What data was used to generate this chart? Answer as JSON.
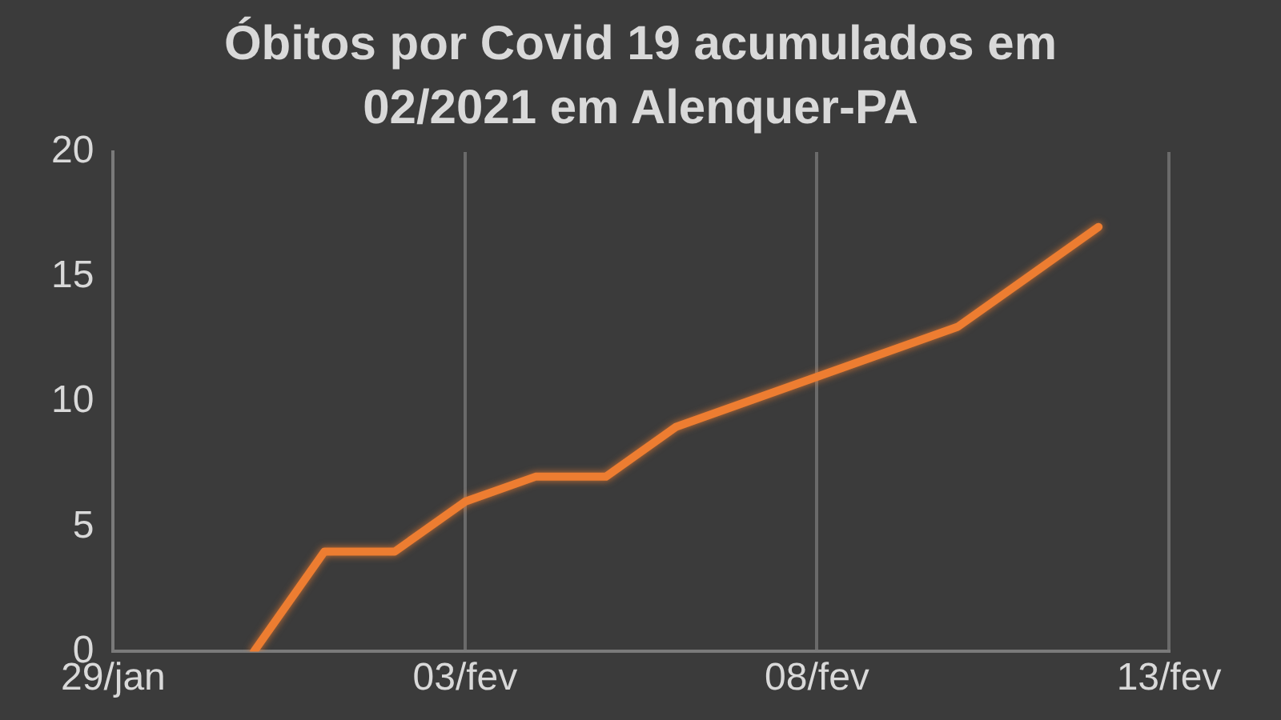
{
  "chart_data": {
    "type": "line",
    "title": "Óbitos por Covid 19 acumulados em 02/2021 em Alenquer-PA",
    "x": [
      "--01-31",
      "--02-01",
      "--02-02",
      "--02-03",
      "--02-04",
      "--02-05",
      "--02-06",
      "--02-07",
      "--02-08",
      "--02-09",
      "--02-10",
      "--02-11",
      "--02-12"
    ],
    "series": [
      {
        "color": "#ed7d31",
        "values": [
          0,
          4,
          4,
          6,
          7,
          7,
          9,
          10,
          11,
          12,
          13,
          15,
          17
        ]
      }
    ],
    "xlim": [
      "--01-29",
      "--02-13"
    ],
    "xticks": [
      {
        "value": "--01-29",
        "label": "29/jan"
      },
      {
        "value": "--02-03",
        "label": "03/fev"
      },
      {
        "value": "--02-08",
        "label": "08/fev"
      },
      {
        "value": "--02-13",
        "label": "13/fev"
      }
    ],
    "ylim": [
      0,
      20
    ],
    "yticks": [
      0,
      5,
      10,
      15,
      20
    ],
    "grid": "x",
    "marker": "none",
    "line_style": "solid",
    "legend": false
  }
}
